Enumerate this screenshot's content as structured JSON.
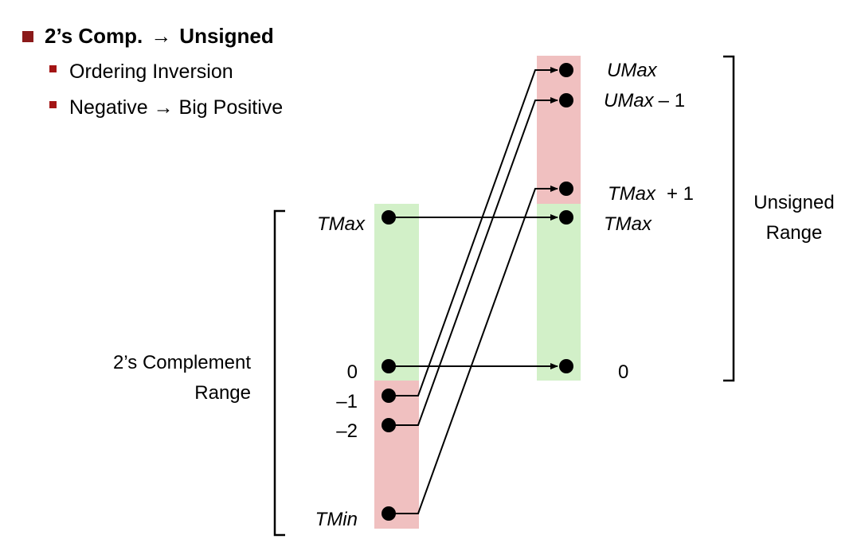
{
  "title": {
    "left": "2’s Comp.",
    "arrow": "→",
    "right": "Unsigned"
  },
  "bullets": [
    {
      "text": "Ordering Inversion"
    },
    {
      "text": "Negative → Big Positive"
    }
  ],
  "colors": {
    "bullet_main": "#8b1a1a",
    "bullet_sub": "#a31515",
    "positive_band": "#d2f0c8",
    "negative_band": "#f0c0c0"
  },
  "diagram": {
    "left_range_label": [
      "2’s Complement",
      "Range"
    ],
    "right_range_label": [
      "Unsigned",
      "Range"
    ],
    "left_points": {
      "tmax": "TMax",
      "zero": "0",
      "minus1": "–1",
      "minus2": "–2",
      "tmin": "TMin"
    },
    "right_points": {
      "umax": "UMax",
      "umax_minus1_var": "UMax",
      "umax_minus1_suffix": "– 1",
      "tmax_plus1_var": "TMax",
      "tmax_plus1_suffix": "+ 1",
      "tmax": "TMax",
      "zero": "0"
    },
    "mappings": [
      {
        "from": "TMax",
        "to": "TMax"
      },
      {
        "from": "0",
        "to": "0"
      },
      {
        "from": "–1",
        "to": "UMax"
      },
      {
        "from": "–2",
        "to": "UMax – 1"
      },
      {
        "from": "TMin",
        "to": "TMax + 1"
      }
    ]
  }
}
